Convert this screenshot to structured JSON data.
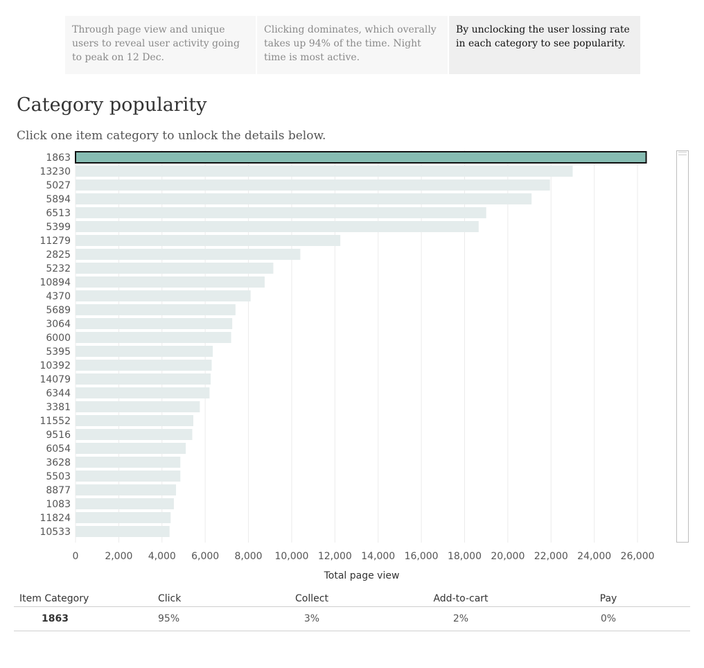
{
  "story": {
    "tabs": [
      {
        "text": "Through page view and unique users to reveal user activity going to peak on 12 Dec.",
        "active": false
      },
      {
        "text": "Clicking dominates, which overally takes up 94% of the time. Night time is most active.",
        "active": false
      },
      {
        "text": "By unclocking the user lossing rate in each category to see popularity.",
        "active": true
      }
    ]
  },
  "header": {
    "title": "Category popularity",
    "subtitle": "Click one item category to unlock the details below."
  },
  "colors": {
    "selected_bar": "#87bcb2",
    "bar": "#e4ecec",
    "gridline": "#ebebeb"
  },
  "chart_data": {
    "type": "bar",
    "orientation": "horizontal",
    "categories": [
      "1863",
      "13230",
      "5027",
      "5894",
      "6513",
      "5399",
      "11279",
      "2825",
      "5232",
      "10894",
      "4370",
      "5689",
      "3064",
      "6000",
      "5395",
      "10392",
      "14079",
      "6344",
      "3381",
      "11552",
      "9516",
      "6054",
      "3628",
      "5503",
      "8877",
      "1083",
      "11824",
      "10533"
    ],
    "values": [
      26400,
      23000,
      21950,
      21100,
      19000,
      18650,
      12250,
      10400,
      9150,
      8750,
      8100,
      7400,
      7250,
      7200,
      6350,
      6300,
      6250,
      6200,
      5750,
      5450,
      5400,
      5100,
      4850,
      4850,
      4650,
      4550,
      4400,
      4350
    ],
    "selected": "1863",
    "xlabel": "Total page view",
    "ylabel": "",
    "xlim": [
      0,
      26800
    ],
    "xticks": [
      "0",
      "2,000",
      "4,000",
      "6,000",
      "8,000",
      "10,000",
      "12,000",
      "14,000",
      "16,000",
      "18,000",
      "20,000",
      "22,000",
      "24,000",
      "26,000"
    ],
    "grid": true
  },
  "details": {
    "headers": [
      "Item Category",
      "Click",
      "Collect",
      "Add-to-cart",
      "Pay"
    ],
    "row": [
      "1863",
      "95%",
      "3%",
      "2%",
      "0%"
    ]
  }
}
